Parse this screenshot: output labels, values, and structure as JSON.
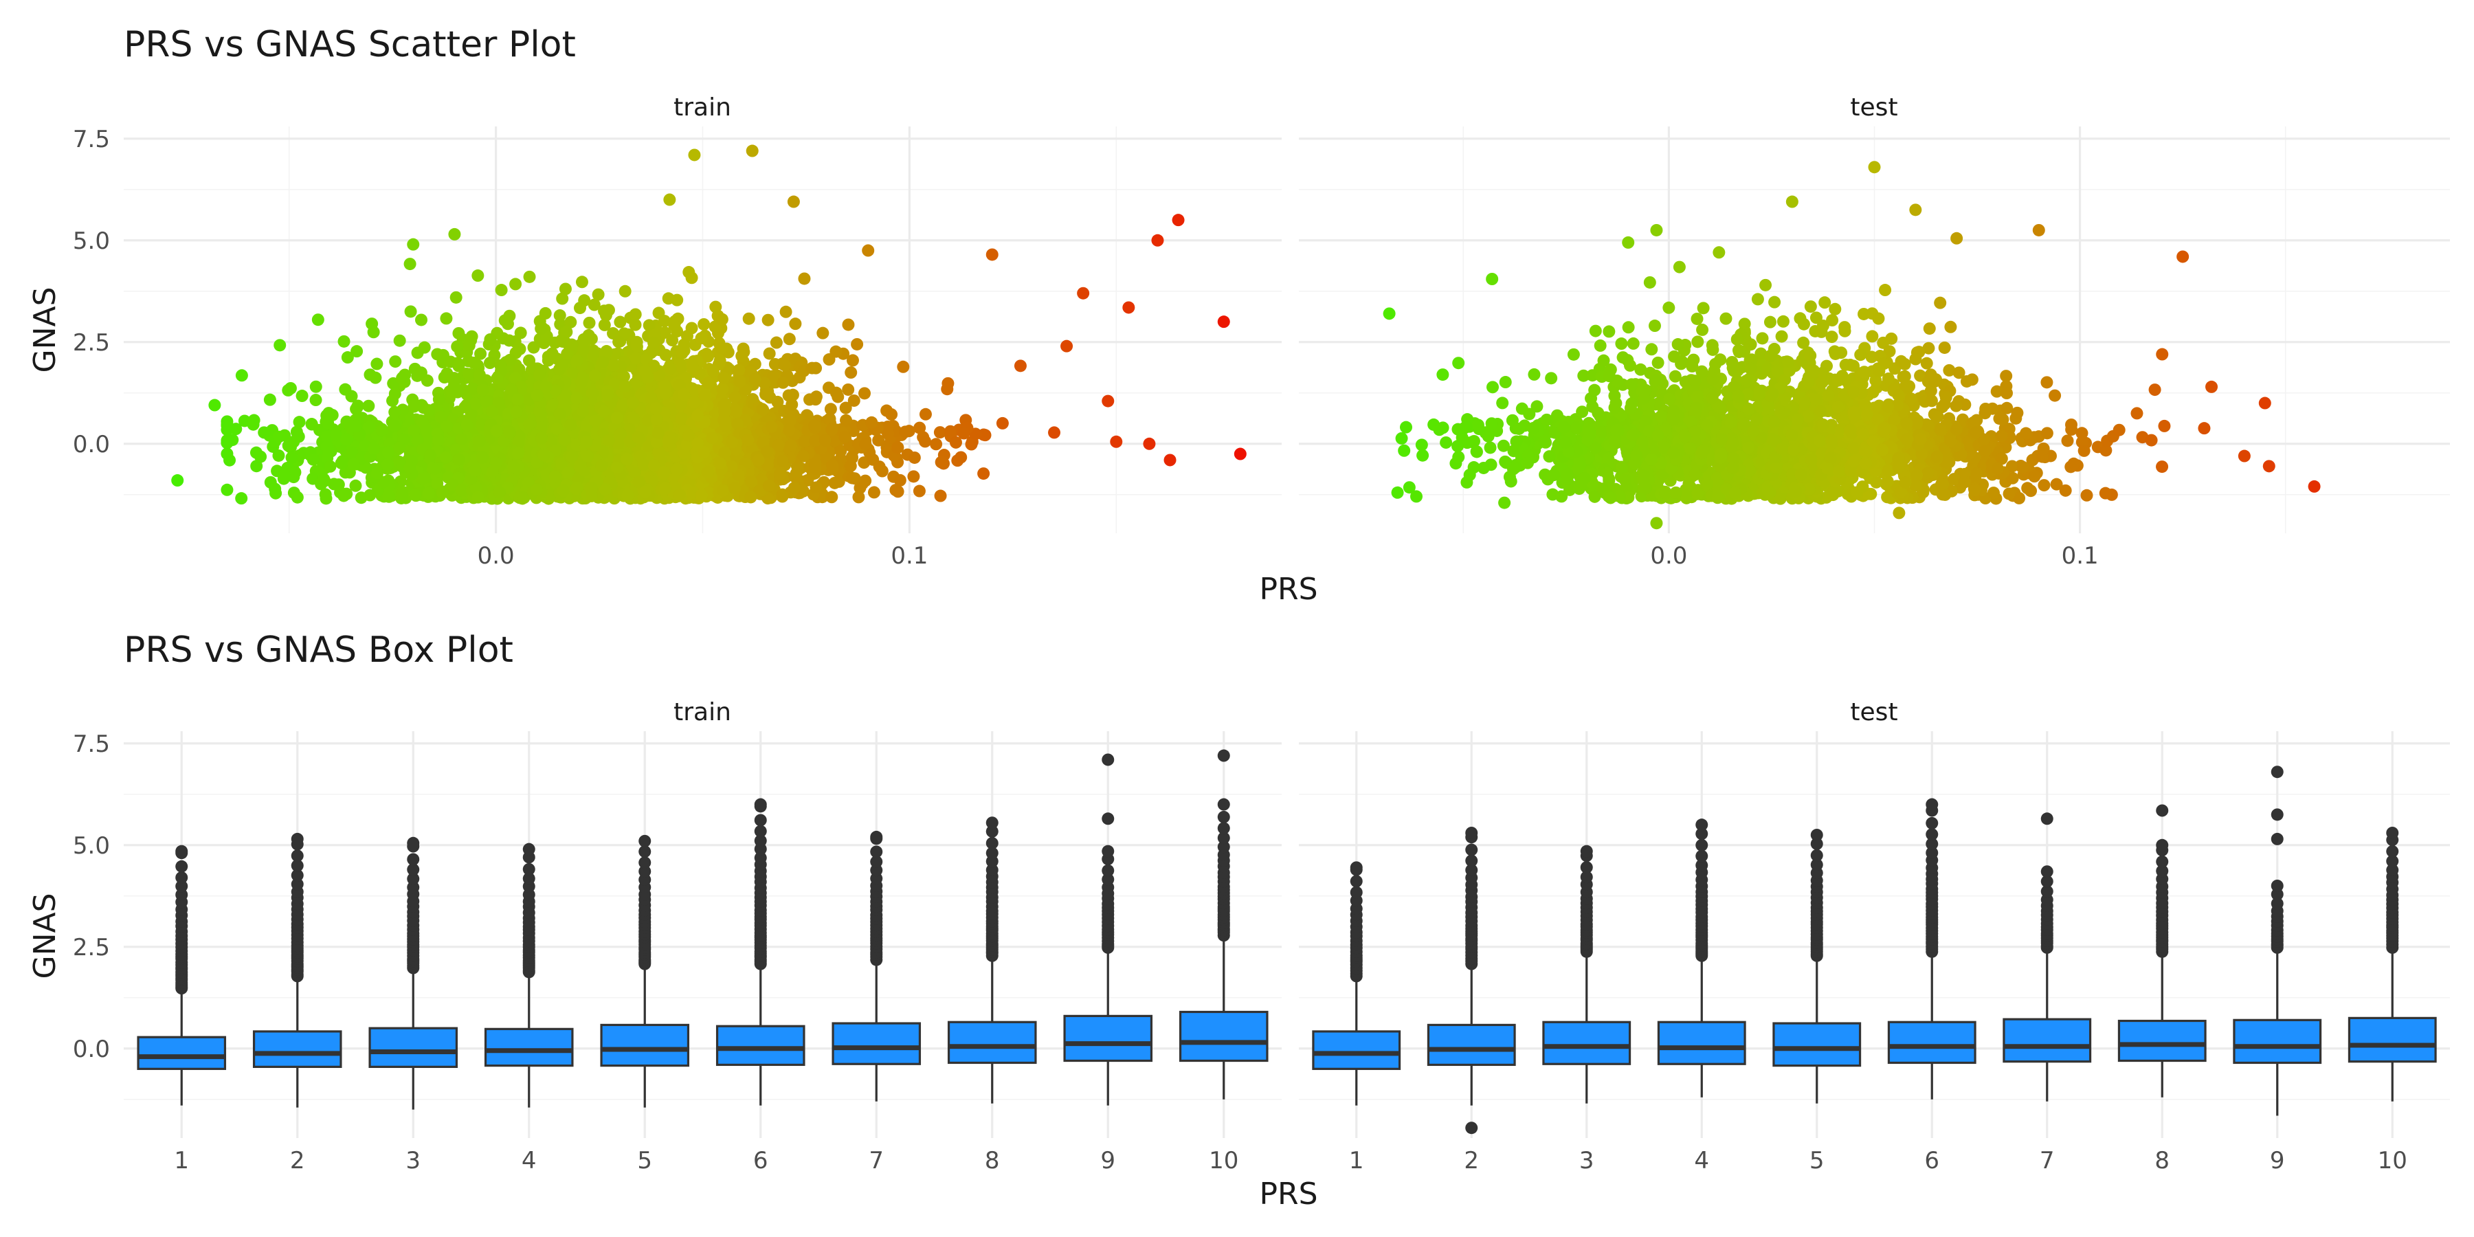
{
  "chart_data": [
    {
      "type": "scatter",
      "title": "PRS vs GNAS Scatter Plot",
      "xlabel": "PRS",
      "ylabel": "GNAS",
      "facets": [
        "train",
        "test"
      ],
      "xlim": [
        -0.09,
        0.19
      ],
      "ylim": [
        -2.2,
        7.8
      ],
      "x_ticks": [
        0.0,
        0.1
      ],
      "x_tick_labels": [
        "0.0",
        "0.1"
      ],
      "y_ticks": [
        0.0,
        2.5,
        5.0,
        7.5
      ],
      "y_tick_labels": [
        "0.0",
        "2.5",
        "5.0",
        "7.5"
      ],
      "color_gradient": {
        "low": "#44ee00",
        "mid": "#b8b800",
        "high": "#ee1100",
        "domain": [
          -0.08,
          0.18
        ]
      },
      "distribution": {
        "x_mean": 0.025,
        "x_sd": 0.03,
        "y_mean": 0.1,
        "y_sd": 0.8
      },
      "outliers": {
        "train": [
          {
            "x": -0.077,
            "y": -0.9
          },
          {
            "x": -0.068,
            "y": 0.95
          },
          {
            "x": -0.043,
            "y": 3.05
          },
          {
            "x": -0.02,
            "y": 4.9
          },
          {
            "x": -0.01,
            "y": 5.15
          },
          {
            "x": 0.048,
            "y": 7.1
          },
          {
            "x": 0.062,
            "y": 7.2
          },
          {
            "x": 0.042,
            "y": 6.0
          },
          {
            "x": 0.072,
            "y": 5.95
          },
          {
            "x": 0.09,
            "y": 4.75
          },
          {
            "x": 0.12,
            "y": 4.65
          },
          {
            "x": 0.138,
            "y": 2.4
          },
          {
            "x": 0.142,
            "y": 3.7
          },
          {
            "x": 0.148,
            "y": 1.05
          },
          {
            "x": 0.15,
            "y": 0.05
          },
          {
            "x": 0.153,
            "y": 3.35
          },
          {
            "x": 0.158,
            "y": 0.0
          },
          {
            "x": 0.16,
            "y": 5.0
          },
          {
            "x": 0.163,
            "y": -0.4
          },
          {
            "x": 0.165,
            "y": 5.5
          },
          {
            "x": 0.176,
            "y": 3.0
          },
          {
            "x": 0.18,
            "y": -0.25
          }
        ],
        "test": [
          {
            "x": -0.068,
            "y": 3.2
          },
          {
            "x": -0.066,
            "y": -1.2
          },
          {
            "x": -0.055,
            "y": 1.7
          },
          {
            "x": -0.043,
            "y": 4.05
          },
          {
            "x": -0.04,
            "y": -1.45
          },
          {
            "x": -0.003,
            "y": 5.25
          },
          {
            "x": -0.003,
            "y": -1.95
          },
          {
            "x": 0.03,
            "y": 5.95
          },
          {
            "x": 0.05,
            "y": 6.8
          },
          {
            "x": 0.06,
            "y": 5.75
          },
          {
            "x": 0.07,
            "y": 5.05
          },
          {
            "x": 0.09,
            "y": 5.25
          },
          {
            "x": 0.056,
            "y": -1.7
          },
          {
            "x": 0.12,
            "y": 2.2
          },
          {
            "x": 0.125,
            "y": 4.6
          },
          {
            "x": 0.132,
            "y": 1.4
          },
          {
            "x": 0.14,
            "y": -0.3
          },
          {
            "x": 0.145,
            "y": 1.0
          },
          {
            "x": 0.146,
            "y": -0.55
          },
          {
            "x": 0.157,
            "y": -1.05
          }
        ]
      }
    },
    {
      "type": "box",
      "title": "PRS vs GNAS Box Plot",
      "xlabel": "PRS",
      "ylabel": "GNAS",
      "facets": [
        "train",
        "test"
      ],
      "categories": [
        "1",
        "2",
        "3",
        "4",
        "5",
        "6",
        "7",
        "8",
        "9",
        "10"
      ],
      "ylim": [
        -2.2,
        7.8
      ],
      "y_ticks": [
        0.0,
        2.5,
        5.0,
        7.5
      ],
      "y_tick_labels": [
        "0.0",
        "2.5",
        "5.0",
        "7.5"
      ],
      "fill": "#1e90ff",
      "boxes": {
        "train": [
          {
            "low": -1.4,
            "q1": -0.5,
            "median": -0.2,
            "q3": 0.28,
            "high": 1.4,
            "out_max": 4.85,
            "extra": []
          },
          {
            "low": -1.45,
            "q1": -0.45,
            "median": -0.12,
            "q3": 0.42,
            "high": 1.7,
            "out_max": 5.15,
            "extra": []
          },
          {
            "low": -1.5,
            "q1": -0.45,
            "median": -0.08,
            "q3": 0.5,
            "high": 1.9,
            "out_max": 5.05,
            "extra": []
          },
          {
            "low": -1.45,
            "q1": -0.42,
            "median": -0.05,
            "q3": 0.48,
            "high": 1.8,
            "out_max": 4.9,
            "extra": []
          },
          {
            "low": -1.45,
            "q1": -0.42,
            "median": -0.02,
            "q3": 0.58,
            "high": 2.0,
            "out_max": 5.1,
            "extra": []
          },
          {
            "low": -1.4,
            "q1": -0.4,
            "median": 0.0,
            "q3": 0.55,
            "high": 2.0,
            "out_max": 6.0,
            "extra": []
          },
          {
            "low": -1.3,
            "q1": -0.38,
            "median": 0.02,
            "q3": 0.62,
            "high": 2.1,
            "out_max": 5.2,
            "extra": []
          },
          {
            "low": -1.35,
            "q1": -0.35,
            "median": 0.05,
            "q3": 0.65,
            "high": 2.2,
            "out_max": 5.55,
            "extra": []
          },
          {
            "low": -1.4,
            "q1": -0.3,
            "median": 0.12,
            "q3": 0.8,
            "high": 2.4,
            "out_max": 4.85,
            "extra": [
              5.65,
              7.1
            ]
          },
          {
            "low": -1.25,
            "q1": -0.3,
            "median": 0.15,
            "q3": 0.9,
            "high": 2.7,
            "out_max": 6.0,
            "extra": [
              7.2
            ]
          }
        ],
        "test": [
          {
            "low": -1.4,
            "q1": -0.5,
            "median": -0.12,
            "q3": 0.42,
            "high": 1.7,
            "out_max": 4.45,
            "extra": []
          },
          {
            "low": -1.4,
            "q1": -0.4,
            "median": -0.02,
            "q3": 0.58,
            "high": 2.0,
            "out_max": 5.3,
            "extra": [
              -1.95
            ]
          },
          {
            "low": -1.35,
            "q1": -0.38,
            "median": 0.05,
            "q3": 0.65,
            "high": 2.3,
            "out_max": 4.85,
            "extra": []
          },
          {
            "low": -1.2,
            "q1": -0.38,
            "median": 0.02,
            "q3": 0.65,
            "high": 2.2,
            "out_max": 5.5,
            "extra": []
          },
          {
            "low": -1.35,
            "q1": -0.42,
            "median": 0.0,
            "q3": 0.62,
            "high": 2.2,
            "out_max": 5.25,
            "extra": []
          },
          {
            "low": -1.25,
            "q1": -0.35,
            "median": 0.05,
            "q3": 0.65,
            "high": 2.3,
            "out_max": 6.0,
            "extra": []
          },
          {
            "low": -1.3,
            "q1": -0.32,
            "median": 0.05,
            "q3": 0.72,
            "high": 2.4,
            "out_max": 4.35,
            "extra": [
              5.65
            ]
          },
          {
            "low": -1.2,
            "q1": -0.3,
            "median": 0.1,
            "q3": 0.68,
            "high": 2.3,
            "out_max": 5.0,
            "extra": [
              5.85
            ]
          },
          {
            "low": -1.65,
            "q1": -0.35,
            "median": 0.05,
            "q3": 0.7,
            "high": 2.4,
            "out_max": 4.0,
            "extra": [
              5.15,
              5.75,
              6.8
            ]
          },
          {
            "low": -1.3,
            "q1": -0.32,
            "median": 0.08,
            "q3": 0.75,
            "high": 2.4,
            "out_max": 5.3,
            "extra": []
          }
        ]
      }
    }
  ]
}
